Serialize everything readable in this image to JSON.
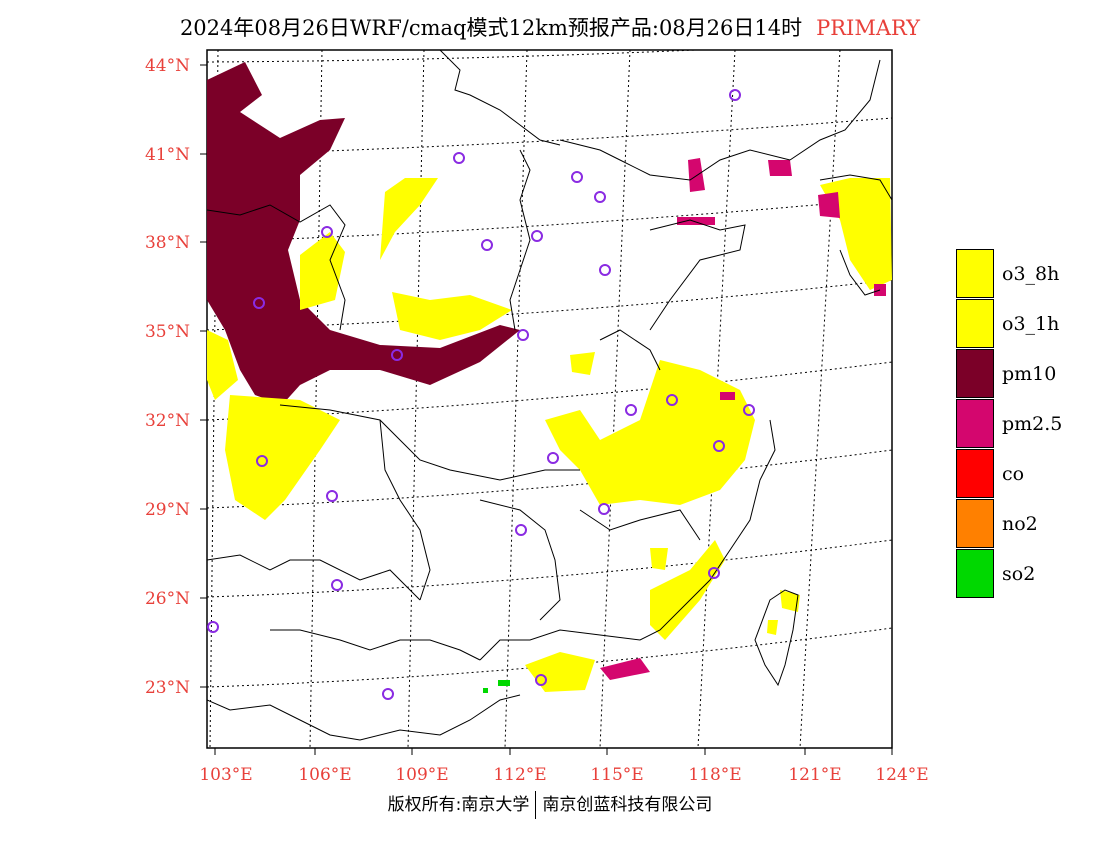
{
  "title": {
    "main": "2024年08月26日WRF/cmaq模式12km预报产品:08月26日14时",
    "tag": "PRIMARY"
  },
  "axes": {
    "lat_labels": [
      "44°N",
      "41°N",
      "38°N",
      "35°N",
      "32°N",
      "29°N",
      "26°N",
      "23°N"
    ],
    "lon_labels": [
      "103°E",
      "106°E",
      "109°E",
      "112°E",
      "115°E",
      "118°E",
      "121°E",
      "124°E"
    ]
  },
  "legend": [
    {
      "label": "o3_8h",
      "color": "#ffff00"
    },
    {
      "label": "o3_1h",
      "color": "#ffff00"
    },
    {
      "label": "pm10",
      "color": "#7b0028"
    },
    {
      "label": "pm2.5",
      "color": "#d4066e"
    },
    {
      "label": "co",
      "color": "#ff0000"
    },
    {
      "label": "no2",
      "color": "#ff8000"
    },
    {
      "label": "so2",
      "color": "#00d800"
    }
  ],
  "colors": {
    "axis_label": "#e8403a",
    "station_marker": "#8a2be2"
  },
  "footer": {
    "left": "版权所有:南京大学",
    "right": "南京创蓝科技有限公司"
  }
}
